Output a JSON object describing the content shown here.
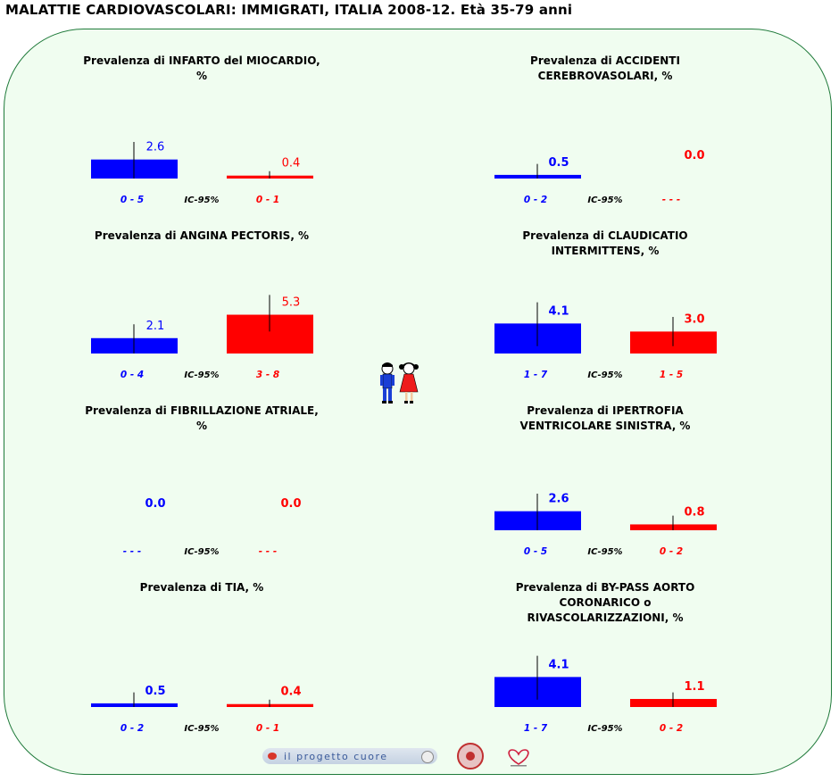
{
  "page": {
    "title": "MALATTIE CARDIOVASCOLARI: IMMIGRATI, ITALIA 2008-12. Età 35-79 anni"
  },
  "colors": {
    "men": "#0000ff",
    "women": "#ff0000",
    "frame_border": "#1f7a3a",
    "frame_fill": "#f0fdf0"
  },
  "ci_label": "IC-95%",
  "chart_data": [
    {
      "type": "bar",
      "title_lines": [
        "Prevalenza di INFARTO del MIOCARDIO,",
        "%"
      ],
      "men": {
        "value": 2.6,
        "label": "2.6",
        "ci": [
          0,
          5
        ],
        "ci_text": "0   -   5"
      },
      "women": {
        "value": 0.4,
        "label": "0.4",
        "ci": [
          0,
          1
        ],
        "ci_text": "0   -   1"
      }
    },
    {
      "type": "bar",
      "title_lines": [
        "Prevalenza di ACCIDENTI",
        "CEREBROVASOLARI, %"
      ],
      "men": {
        "value": 0.5,
        "label": "0.5",
        "ci": [
          0,
          2
        ],
        "ci_text": "0   -   2"
      },
      "women": {
        "value": 0.0,
        "label": "0.0",
        "ci": null,
        "ci_text": "-   -   -"
      }
    },
    {
      "type": "bar",
      "title_lines": [
        "Prevalenza di ANGINA PECTORIS, %"
      ],
      "men": {
        "value": 2.1,
        "label": "2.1",
        "ci": [
          0,
          4
        ],
        "ci_text": "0   -   4"
      },
      "women": {
        "value": 5.3,
        "label": "5.3",
        "ci": [
          3,
          8
        ],
        "ci_text": "3   -   8"
      }
    },
    {
      "type": "bar",
      "title_lines": [
        "Prevalenza di CLAUDICATIO",
        "INTERMITTENS, %"
      ],
      "men": {
        "value": 4.1,
        "label": "4.1",
        "ci": [
          1,
          7
        ],
        "ci_text": "1   -   7"
      },
      "women": {
        "value": 3.0,
        "label": "3.0",
        "ci": [
          1,
          5
        ],
        "ci_text": "1   -   5"
      }
    },
    {
      "type": "bar",
      "title_lines": [
        "Prevalenza di FIBRILLAZIONE ATRIALE,",
        "%"
      ],
      "men": {
        "value": 0.0,
        "label": "0.0",
        "ci": null,
        "ci_text": "-   -   -"
      },
      "women": {
        "value": 0.0,
        "label": "0.0",
        "ci": null,
        "ci_text": "-   -   -"
      }
    },
    {
      "type": "bar",
      "title_lines": [
        "Prevalenza di IPERTROFIA",
        "VENTRICOLARE SINISTRA, %"
      ],
      "men": {
        "value": 2.6,
        "label": "2.6",
        "ci": [
          0,
          5
        ],
        "ci_text": "0   -   5"
      },
      "women": {
        "value": 0.8,
        "label": "0.8",
        "ci": [
          0,
          2
        ],
        "ci_text": "0   -   2"
      }
    },
    {
      "type": "bar",
      "title_lines": [
        "Prevalenza di TIA, %"
      ],
      "men": {
        "value": 0.5,
        "label": "0.5",
        "ci": [
          0,
          2
        ],
        "ci_text": "0   -   2"
      },
      "women": {
        "value": 0.4,
        "label": "0.4",
        "ci": [
          0,
          1
        ],
        "ci_text": "0   -   1"
      }
    },
    {
      "type": "bar",
      "title_lines": [
        "Prevalenza di BY-PASS AORTO",
        "CORONARICO o",
        "RIVASCOLARIZZAZIONI, %"
      ],
      "men": {
        "value": 4.1,
        "label": "4.1",
        "ci": [
          1,
          7
        ],
        "ci_text": "1   -   7"
      },
      "women": {
        "value": 1.1,
        "label": "1.1",
        "ci": [
          0,
          2
        ],
        "ci_text": "0   -   2"
      }
    }
  ],
  "logos": {
    "progetto_text": "il progetto cuore"
  }
}
